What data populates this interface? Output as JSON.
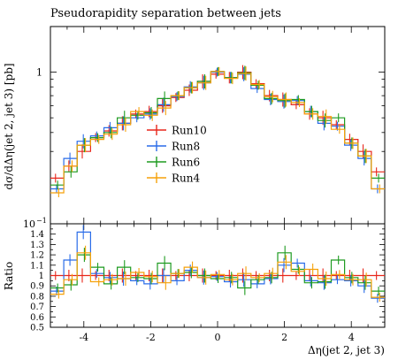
{
  "chart_data": [
    {
      "type": "line",
      "title": "Pseudorapidity separation between jets",
      "xlabel": "",
      "ylabel": "dσ/dΔη(jet 2, jet 3) [pb]",
      "yscale": "log",
      "ylim": [
        0.1,
        2.0
      ],
      "xlim": [
        -5,
        5
      ],
      "ytick_labels": [
        "10",
        "−1",
        "1"
      ],
      "legend_position": "center-left",
      "x": [
        -4.8,
        -4.4,
        -4.0,
        -3.6,
        -3.2,
        -2.8,
        -2.4,
        -2.0,
        -1.6,
        -1.2,
        -0.8,
        -0.4,
        0.0,
        0.4,
        0.8,
        1.2,
        1.6,
        2.0,
        2.4,
        2.8,
        3.2,
        3.6,
        4.0,
        4.4,
        4.8
      ],
      "series": [
        {
          "name": "Run10",
          "color": "#e8271b",
          "values": [
            0.2,
            0.24,
            0.3,
            0.37,
            0.41,
            0.46,
            0.53,
            0.55,
            0.6,
            0.68,
            0.76,
            0.87,
            0.97,
            0.92,
            1.0,
            0.84,
            0.7,
            0.66,
            0.61,
            0.53,
            0.5,
            0.45,
            0.36,
            0.3,
            0.22
          ]
        },
        {
          "name": "Run8",
          "color": "#2a6ce8",
          "values": [
            0.17,
            0.27,
            0.35,
            0.38,
            0.43,
            0.46,
            0.5,
            0.53,
            0.61,
            0.69,
            0.8,
            0.85,
            1.0,
            0.92,
            0.97,
            0.78,
            0.66,
            0.64,
            0.65,
            0.55,
            0.46,
            0.44,
            0.33,
            0.27,
            0.17
          ]
        },
        {
          "name": "Run6",
          "color": "#1f9b21",
          "values": [
            0.18,
            0.22,
            0.33,
            0.37,
            0.4,
            0.5,
            0.52,
            0.54,
            0.67,
            0.7,
            0.79,
            0.87,
            1.01,
            0.92,
            0.99,
            0.82,
            0.67,
            0.65,
            0.66,
            0.55,
            0.48,
            0.5,
            0.34,
            0.28,
            0.2
          ]
        },
        {
          "name": "Run4",
          "color": "#f5a10a",
          "values": [
            0.16,
            0.24,
            0.33,
            0.36,
            0.39,
            0.45,
            0.55,
            0.52,
            0.58,
            0.7,
            0.79,
            0.85,
            1.01,
            0.91,
            0.98,
            0.83,
            0.69,
            0.66,
            0.63,
            0.53,
            0.51,
            0.42,
            0.34,
            0.28,
            0.17
          ]
        }
      ]
    },
    {
      "type": "line",
      "ylabel": "Ratio",
      "xlabel": "Δη(jet 2, jet 3)",
      "xlim": [
        -5,
        5
      ],
      "ylim": [
        0.5,
        1.5
      ],
      "yticks": [
        0.5,
        0.6,
        0.7,
        0.8,
        0.9,
        1.0,
        1.1,
        1.2,
        1.3,
        1.4
      ],
      "ytick_labels": [
        "0.5",
        "0.6",
        "0.7",
        "0.8",
        "0.9",
        "1",
        "1.1",
        "1.2",
        "1.3",
        "1.4"
      ],
      "xticks": [
        -4,
        -2,
        0,
        2,
        4
      ],
      "xtick_labels": [
        "-4",
        "-2",
        "0",
        "2",
        "4"
      ],
      "x": [
        -4.8,
        -4.4,
        -4.0,
        -3.6,
        -3.2,
        -2.8,
        -2.4,
        -2.0,
        -1.6,
        -1.2,
        -0.8,
        -0.4,
        0.0,
        0.4,
        0.8,
        1.2,
        1.6,
        2.0,
        2.4,
        2.8,
        3.2,
        3.6,
        4.0,
        4.4,
        4.8
      ],
      "series": [
        {
          "name": "Run10",
          "color": "#e8271b",
          "values": [
            1.0,
            1.0,
            1.0,
            1.0,
            1.0,
            1.0,
            1.0,
            1.0,
            1.0,
            1.0,
            1.0,
            1.0,
            1.0,
            1.0,
            1.0,
            1.0,
            1.0,
            1.0,
            1.0,
            1.0,
            1.0,
            1.0,
            1.0,
            1.0,
            1.0
          ]
        },
        {
          "name": "Run8",
          "color": "#2a6ce8",
          "values": [
            0.85,
            1.15,
            1.42,
            1.02,
            0.98,
            0.97,
            0.95,
            0.92,
            1.0,
            0.95,
            1.05,
            0.98,
            0.99,
            0.94,
            0.96,
            0.92,
            0.97,
            1.1,
            1.12,
            0.95,
            0.93,
            0.96,
            0.95,
            0.9,
            0.78
          ]
        },
        {
          "name": "Run6",
          "color": "#1f9b21",
          "values": [
            0.88,
            0.91,
            1.2,
            1.08,
            0.92,
            1.08,
            0.98,
            0.97,
            1.12,
            1.02,
            1.03,
            1.0,
            0.97,
            0.98,
            0.88,
            0.96,
            0.98,
            1.22,
            1.06,
            0.93,
            0.94,
            1.15,
            0.98,
            0.93,
            0.85
          ]
        },
        {
          "name": "Run4",
          "color": "#f5a10a",
          "values": [
            0.82,
            0.96,
            1.22,
            0.94,
            0.96,
            0.97,
            1.03,
            0.99,
            0.93,
            1.02,
            1.08,
            0.98,
            1.01,
            0.96,
            1.02,
            0.98,
            1.02,
            1.13,
            1.04,
            1.06,
            0.97,
            1.01,
            0.96,
            0.96,
            0.79
          ]
        }
      ]
    }
  ]
}
